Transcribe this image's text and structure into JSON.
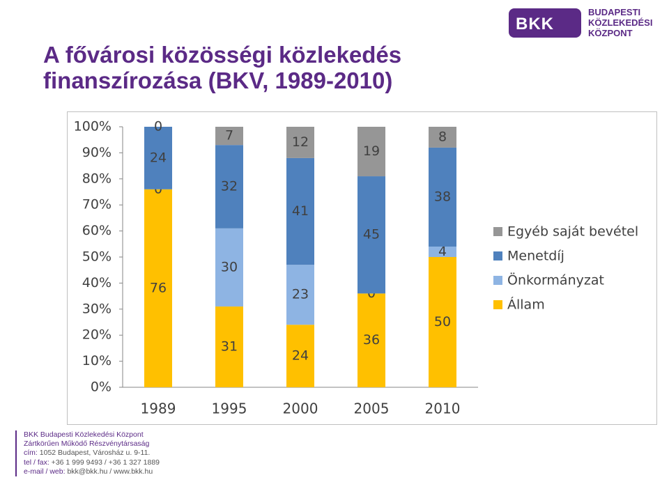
{
  "slide": {
    "title_line1": "A fővárosi közösségi közlekedés",
    "title_line2": "finanszírozása (BKV, 1989-2010)"
  },
  "logo": {
    "badge_text": "BKK",
    "line1": "BUDAPESTI",
    "line2": "KÖZLEKEDÉSI",
    "line3": "KÖZPONT"
  },
  "footer": {
    "line1": "BKK Budapesti Közlekedési Központ",
    "line2": "Zártkörűen Működő Részvénytársaság",
    "line3_label": "cím:",
    "line3_value": " 1052 Budapest, Városház u. 9-11.",
    "line4_label": "tel / fax:",
    "line4_value": " +36 1 999 9493 / +36 1 327 1889",
    "line5_label": "e-mail / web:",
    "line5_value": " bkk@bkk.hu / www.bkk.hu"
  },
  "chart_data": {
    "type": "bar",
    "stacked": "percent",
    "categories": [
      "1989",
      "1995",
      "2000",
      "2005",
      "2010"
    ],
    "series": [
      {
        "name": "Állam",
        "values": [
          76,
          31,
          24,
          36,
          50
        ],
        "color": "#ffc000"
      },
      {
        "name": "Önkormányzat",
        "values": [
          0,
          30,
          23,
          0,
          4
        ],
        "color": "#8eb4e3"
      },
      {
        "name": "Menetdíj",
        "values": [
          24,
          32,
          41,
          45,
          38
        ],
        "color": "#4f81bd"
      },
      {
        "name": "Egyéb saját bevétel",
        "values": [
          0,
          7,
          12,
          19,
          8
        ],
        "color": "#969696"
      }
    ],
    "y_ticks": [
      "0%",
      "10%",
      "20%",
      "30%",
      "40%",
      "50%",
      "60%",
      "70%",
      "80%",
      "90%",
      "100%"
    ],
    "ylim": [
      0,
      100
    ],
    "legend_position": "right",
    "grid": false
  }
}
